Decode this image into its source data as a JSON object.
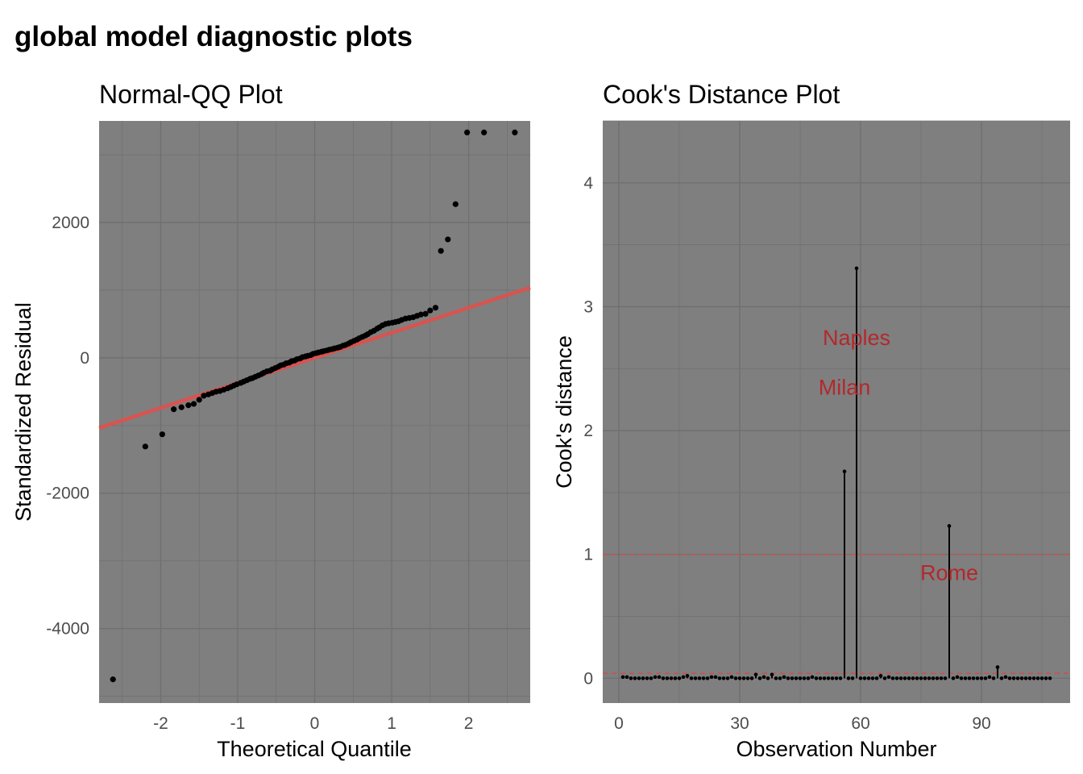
{
  "title": "global model diagnostic plots",
  "colors": {
    "panel_bg": "#7f7f7f",
    "grid": "#6f6f6f",
    "points": "#000000",
    "reference_line": "#d9534f",
    "annotation": "#b3282d",
    "threshold_line": "#cc4f4f"
  },
  "chart_data": [
    {
      "type": "scatter",
      "title": "Normal-QQ Plot",
      "xlabel": "Theoretical Quantile",
      "ylabel": "Standardized Residual",
      "xlim": [
        -2.8,
        2.8
      ],
      "ylim": [
        -5100,
        3500
      ],
      "xticks": [
        -2,
        -1,
        0,
        1,
        2
      ],
      "yticks": [
        -4000,
        -2000,
        0,
        2000
      ],
      "grid": true,
      "reference_line": {
        "slope": 370,
        "intercept": 0
      },
      "points": {
        "x": [
          -2.62,
          -2.2,
          -1.98,
          -1.83,
          -1.73,
          -1.64,
          -1.57,
          -1.5,
          -1.44,
          -1.38,
          -1.33,
          -1.28,
          -1.23,
          -1.18,
          -1.13,
          -1.09,
          -1.05,
          -1.01,
          -0.96,
          -0.92,
          -0.88,
          -0.84,
          -0.81,
          -0.77,
          -0.73,
          -0.69,
          -0.66,
          -0.62,
          -0.58,
          -0.55,
          -0.51,
          -0.47,
          -0.44,
          -0.4,
          -0.37,
          -0.33,
          -0.3,
          -0.26,
          -0.23,
          -0.19,
          -0.16,
          -0.12,
          -0.09,
          -0.05,
          -0.02,
          0.02,
          0.05,
          0.09,
          0.12,
          0.16,
          0.19,
          0.23,
          0.26,
          0.3,
          0.33,
          0.37,
          0.4,
          0.44,
          0.47,
          0.51,
          0.55,
          0.58,
          0.62,
          0.66,
          0.69,
          0.73,
          0.77,
          0.81,
          0.84,
          0.88,
          0.92,
          0.96,
          1.01,
          1.05,
          1.09,
          1.13,
          1.18,
          1.23,
          1.28,
          1.33,
          1.38,
          1.44,
          1.5,
          1.57,
          1.64,
          1.73,
          1.83,
          1.98,
          2.2,
          2.6
        ],
        "y": [
          -4750,
          -1310,
          -1130,
          -760,
          -730,
          -700,
          -680,
          -620,
          -560,
          -540,
          -520,
          -500,
          -490,
          -470,
          -450,
          -430,
          -410,
          -390,
          -370,
          -350,
          -330,
          -310,
          -300,
          -280,
          -260,
          -240,
          -220,
          -200,
          -190,
          -170,
          -150,
          -130,
          -110,
          -100,
          -80,
          -70,
          -50,
          -40,
          -20,
          -10,
          10,
          20,
          30,
          40,
          60,
          70,
          80,
          90,
          100,
          110,
          120,
          130,
          140,
          150,
          160,
          180,
          190,
          210,
          230,
          250,
          270,
          290,
          310,
          330,
          350,
          380,
          400,
          430,
          450,
          480,
          500,
          510,
          520,
          530,
          540,
          560,
          580,
          590,
          600,
          620,
          640,
          650,
          700,
          740,
          1580,
          1750,
          2270,
          3330,
          3330,
          3330
        ]
      }
    },
    {
      "type": "line",
      "title": "Cook's Distance Plot",
      "xlabel": "Observation Number",
      "ylabel": "Cook's distance",
      "xlim": [
        -4,
        112
      ],
      "ylim": [
        -0.2,
        4.5
      ],
      "xticks": [
        0,
        30,
        60,
        90
      ],
      "yticks": [
        0,
        1,
        2,
        3,
        4
      ],
      "grid": true,
      "thresholds": [
        1,
        0.04
      ],
      "n_obs": 107,
      "values": [
        0.01,
        0.01,
        0.0,
        0.0,
        0.0,
        0.0,
        0.0,
        0.0,
        0.01,
        0.01,
        0.0,
        0.0,
        0.0,
        0.0,
        0.0,
        0.01,
        0.02,
        0.0,
        0.0,
        0.0,
        0.0,
        0.0,
        0.01,
        0.01,
        0.0,
        0.0,
        0.0,
        0.01,
        0.0,
        0.0,
        0.0,
        0.0,
        0.0,
        0.03,
        0.0,
        0.01,
        0.0,
        0.03,
        0.0,
        0.0,
        0.01,
        0.0,
        0.0,
        0.0,
        0.0,
        0.0,
        0.0,
        0.01,
        0.0,
        0.0,
        0.0,
        0.0,
        0.0,
        0.0,
        0.0,
        1.67,
        0.0,
        0.0,
        3.31,
        0.0,
        0.0,
        0.0,
        0.0,
        0.0,
        0.02,
        0.0,
        0.01,
        0.0,
        0.0,
        0.0,
        0.0,
        0.0,
        0.0,
        0.0,
        0.0,
        0.0,
        0.0,
        0.0,
        0.0,
        0.0,
        0.0,
        1.23,
        0.0,
        0.01,
        0.0,
        0.0,
        0.0,
        0.0,
        0.0,
        0.0,
        0.0,
        0.01,
        0.0,
        0.09,
        0.0,
        0.01,
        0.0,
        0.0,
        0.0,
        0.0,
        0.0,
        0.0,
        0.0,
        0.0,
        0.0,
        0.0,
        0.0
      ],
      "annotations": [
        {
          "label": "Naples",
          "x": 59,
          "y": 2.75
        },
        {
          "label": "Milan",
          "x": 56,
          "y": 2.35
        },
        {
          "label": "Rome",
          "x": 82,
          "y": 0.85
        }
      ]
    }
  ]
}
